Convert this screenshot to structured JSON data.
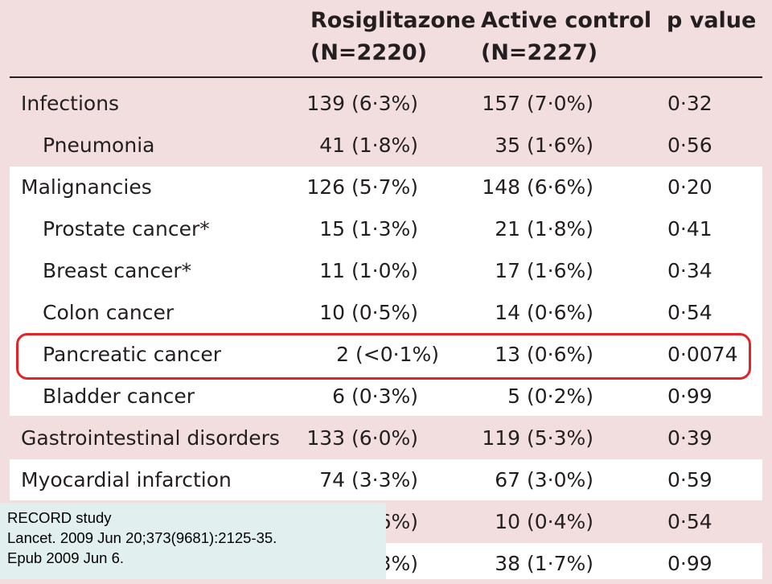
{
  "table": {
    "columns": [
      {
        "line1": "Rosiglitazone",
        "line2": "(N=2220)"
      },
      {
        "line1": "Active control",
        "line2": "(N=2227)"
      },
      {
        "line1": "p value",
        "line2": ""
      }
    ],
    "rows": [
      {
        "label": "Infections",
        "rosiglitazone": "139 (6·3%)",
        "active_control": "157 (7·0%)",
        "p_value": "0·32"
      },
      {
        "label": "Pneumonia",
        "rosiglitazone": "41 (1·8%)",
        "active_control": "35 (1·6%)",
        "p_value": "0·56"
      },
      {
        "label": "Malignancies",
        "rosiglitazone": "126 (5·7%)",
        "active_control": "148 (6·6%)",
        "p_value": "0·20"
      },
      {
        "label": "Prostate cancer*",
        "rosiglitazone": "15 (1·3%)",
        "active_control": "21 (1·8%)",
        "p_value": "0·41"
      },
      {
        "label": "Breast cancer*",
        "rosiglitazone": "11 (1·0%)",
        "active_control": "17 (1·6%)",
        "p_value": "0·34"
      },
      {
        "label": "Colon cancer",
        "rosiglitazone": "10 (0·5%)",
        "active_control": "14 (0·6%)",
        "p_value": "0·54"
      },
      {
        "label": "Pancreatic cancer",
        "rosiglitazone": "2 (<0·1%)",
        "active_control": "13 (0·6%)",
        "p_value": "0·0074"
      },
      {
        "label": "Bladder cancer",
        "rosiglitazone": "6 (0·3%)",
        "active_control": "5 (0·2%)",
        "p_value": "0·99"
      },
      {
        "label": "Gastrointestinal disorders",
        "rosiglitazone": "133 (6·0%)",
        "active_control": "119 (5·3%)",
        "p_value": "0·39"
      },
      {
        "label": "Myocardial infarction",
        "rosiglitazone": "74 (3·3%)",
        "active_control": "67 (3·0%)",
        "p_value": "0·59"
      },
      {
        "label": "",
        "rosiglitazone": "6%)",
        "active_control": "10 (0·4%)",
        "p_value": "0·54"
      },
      {
        "label": "",
        "rosiglitazone": "3%)",
        "active_control": "38 (1·7%)",
        "p_value": "0·99"
      }
    ]
  },
  "citation": {
    "line1": "RECORD study",
    "line2": "Lancet. 2009 Jun 20;373(9681):2125-35.",
    "line3": "Epub 2009 Jun 6."
  },
  "colors": {
    "shaded_row": "#f2dede",
    "white_row": "#ffffff",
    "highlight_border": "#e32229",
    "citation_background": "#e2efef"
  }
}
